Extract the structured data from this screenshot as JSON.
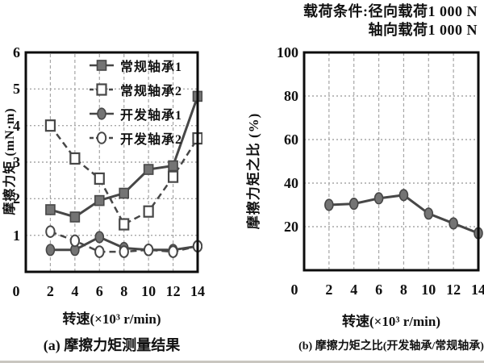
{
  "note": {
    "line1": "载荷条件:径向载荷1 000 N",
    "line2": "轴向载荷1 000 N"
  },
  "colors": {
    "ink": "#111111",
    "line": "#474747",
    "marker_fill": "#747474",
    "marker_open_fill": "#ffffff",
    "grid": "#a6a6a6",
    "border": "#0c0c0c",
    "background": "#ffffff",
    "page_edge": "#c9c6c0"
  },
  "chart_data": [
    {
      "id": "chart-a",
      "type": "line",
      "title": "",
      "xlabel": "转速(×10³ r/min)",
      "ylabel": "摩擦力矩 (mN·m)",
      "caption": "(a) 摩擦力矩测量结果",
      "xlim": [
        0,
        14
      ],
      "ylim": [
        0,
        6
      ],
      "xticks": [
        0,
        2,
        4,
        6,
        8,
        10,
        12,
        14
      ],
      "yticks": [
        1,
        2,
        3,
        4,
        5,
        6
      ],
      "grid": true,
      "legend_position": "top-center-inside",
      "x": [
        2,
        4,
        6,
        8,
        10,
        12,
        14
      ],
      "series": [
        {
          "name": "常规轴承1",
          "slug": "conventional-bearing-1",
          "marker": "filled-square",
          "line_style": "solid",
          "values": [
            1.7,
            1.5,
            1.95,
            2.15,
            2.8,
            2.9,
            4.8
          ]
        },
        {
          "name": "常规轴承2",
          "slug": "conventional-bearing-2",
          "marker": "open-square",
          "line_style": "dashed",
          "values": [
            4.0,
            3.1,
            2.55,
            1.3,
            1.65,
            2.6,
            3.65
          ]
        },
        {
          "name": "开发轴承1",
          "slug": "developed-bearing-1",
          "marker": "filled-circle",
          "line_style": "solid",
          "values": [
            0.6,
            0.6,
            0.95,
            0.65,
            0.6,
            0.6,
            0.7
          ]
        },
        {
          "name": "开发轴承2",
          "slug": "developed-bearing-2",
          "marker": "open-circle",
          "line_style": "dashed",
          "values": [
            1.1,
            0.85,
            0.55,
            0.55,
            0.6,
            0.55,
            0.7
          ]
        }
      ]
    },
    {
      "id": "chart-b",
      "type": "line",
      "title": "",
      "xlabel": "转速(×10³ r/min)",
      "ylabel": "摩擦力矩之比 (%)",
      "caption": "(b) 摩擦力矩之比(开发轴承/常规轴承)",
      "xlim": [
        0,
        14
      ],
      "ylim": [
        0,
        100
      ],
      "xticks": [
        0,
        2,
        4,
        6,
        8,
        10,
        12,
        14
      ],
      "yticks": [
        20,
        40,
        60,
        80,
        100
      ],
      "grid": true,
      "legend_position": "none",
      "x": [
        2,
        4,
        6,
        8,
        10,
        12,
        14
      ],
      "series": [
        {
          "name": "开发轴承/常规轴承",
          "slug": "torque-ratio",
          "marker": "filled-circle",
          "line_style": "solid",
          "values": [
            30,
            30.5,
            33,
            34.5,
            26,
            21.5,
            17
          ]
        }
      ]
    }
  ]
}
